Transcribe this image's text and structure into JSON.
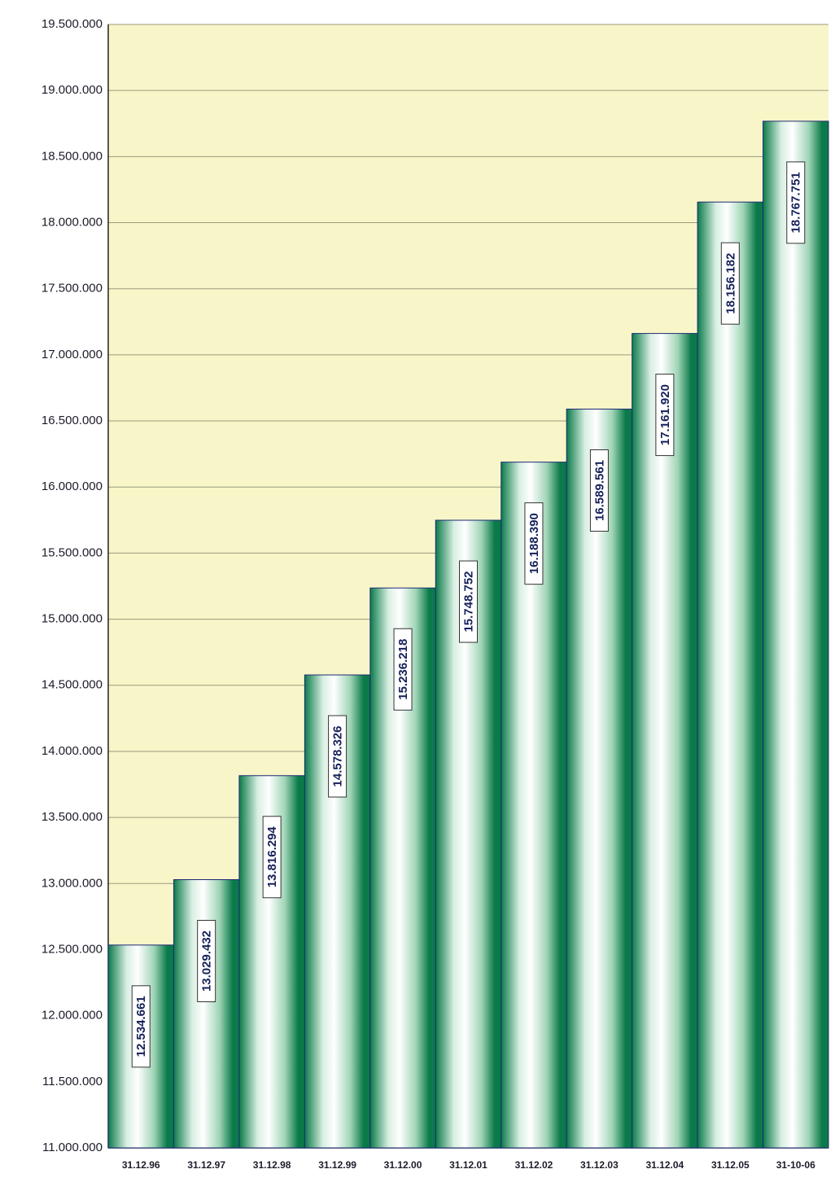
{
  "chart_data": {
    "type": "bar",
    "categories": [
      "31.12.96",
      "31.12.97",
      "31.12.98",
      "31.12.99",
      "31.12.00",
      "31.12.01",
      "31.12.02",
      "31.12.03",
      "31.12.04",
      "31.12.05",
      "31-10-06"
    ],
    "values": [
      12534661,
      13029432,
      13816294,
      14578326,
      15236218,
      15748752,
      16188390,
      16589561,
      17161920,
      18156182,
      18767751
    ],
    "value_labels": [
      "12.534.661",
      "13.029.432",
      "13.816.294",
      "14.578.326",
      "15.236.218",
      "15.748.752",
      "16.188.390",
      "16.589.561",
      "17.161.920",
      "18.156.182",
      "18.767.751"
    ],
    "color": "#0b7a4a",
    "ylim": [
      11000000,
      19500000
    ],
    "yticks": [
      {
        "value": 11000000,
        "label": "11.000.000"
      },
      {
        "value": 11500000,
        "label": "11.500.000"
      },
      {
        "value": 12000000,
        "label": "12.000.000"
      },
      {
        "value": 12500000,
        "label": "12.500.000"
      },
      {
        "value": 13000000,
        "label": "13.000.000"
      },
      {
        "value": 13500000,
        "label": "13.500.000"
      },
      {
        "value": 14000000,
        "label": "14.000.000"
      },
      {
        "value": 14500000,
        "label": "14.500.000"
      },
      {
        "value": 15000000,
        "label": "15.000.000"
      },
      {
        "value": 15500000,
        "label": "15.500.000"
      },
      {
        "value": 16000000,
        "label": "16.000.000"
      },
      {
        "value": 16500000,
        "label": "16.500.000"
      },
      {
        "value": 17000000,
        "label": "17.000.000"
      },
      {
        "value": 17500000,
        "label": "17.500.000"
      },
      {
        "value": 18000000,
        "label": "18.000.000"
      },
      {
        "value": 18500000,
        "label": "18.500.000"
      },
      {
        "value": 19000000,
        "label": "19.000.000"
      },
      {
        "value": 19500000,
        "label": "19.500.000"
      }
    ],
    "grid": true
  }
}
